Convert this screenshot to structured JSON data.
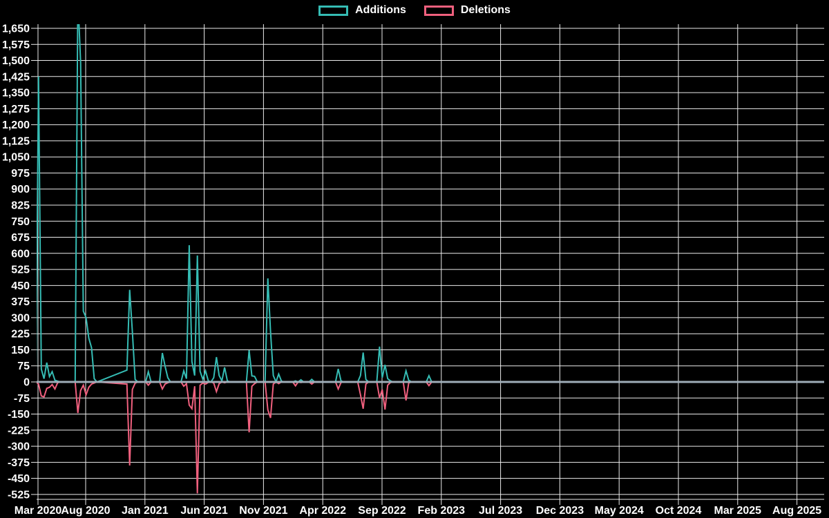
{
  "chart_data": {
    "type": "line",
    "title": "",
    "legend": {
      "position": "top-center",
      "items": [
        {
          "label": "Additions",
          "color": "#35bcb4"
        },
        {
          "label": "Deletions",
          "color": "#f0607e"
        }
      ]
    },
    "colors": {
      "background": "#000000",
      "grid": "#ededed",
      "axis_text": "#ffffff",
      "zero_line": "#9fadb8",
      "additions": "#35bcb4",
      "deletions": "#f0607e"
    },
    "grid": true,
    "y_axis": {
      "min": -525,
      "max": 1650,
      "tick_step": 75,
      "tick_labels": [
        "1,650",
        "1,575",
        "1,500",
        "1,425",
        "1,350",
        "1,275",
        "1,200",
        "1,125",
        "1,050",
        "975",
        "900",
        "825",
        "750",
        "675",
        "600",
        "525",
        "450",
        "375",
        "300",
        "225",
        "150",
        "75",
        "0",
        "-75",
        "-150",
        "-225",
        "-300",
        "-375",
        "-450",
        "-525"
      ]
    },
    "x_axis": {
      "tick_labels": [
        "Mar 2020",
        "Aug 2020",
        "Jan 2021",
        "Jun 2021",
        "Nov 2021",
        "Apr 2022",
        "Sep 2022",
        "Feb 2023",
        "Jul 2023",
        "Dec 2023",
        "May 2024",
        "Oct 2024",
        "Mar 2025",
        "Aug 2025"
      ]
    },
    "points_schema": [
      "week_start_date",
      "additions",
      "deletions"
    ],
    "points": [
      [
        "2020-03-26",
        0,
        0
      ],
      [
        "2020-04-02",
        1425,
        -10
      ],
      [
        "2020-04-09",
        60,
        -65
      ],
      [
        "2020-04-16",
        15,
        -70
      ],
      [
        "2020-04-23",
        90,
        -30
      ],
      [
        "2020-04-30",
        25,
        -25
      ],
      [
        "2020-05-07",
        48,
        -12
      ],
      [
        "2020-05-14",
        8,
        -33
      ],
      [
        "2020-05-21",
        4,
        -4
      ],
      [
        "2020-05-28",
        0,
        0
      ],
      [
        "2020-07-05",
        0,
        0
      ],
      [
        "2020-07-12",
        1800,
        -145
      ],
      [
        "2020-07-19",
        1490,
        -40
      ],
      [
        "2020-07-26",
        330,
        -15
      ],
      [
        "2020-08-02",
        300,
        -60
      ],
      [
        "2020-08-09",
        205,
        -25
      ],
      [
        "2020-08-16",
        160,
        -10
      ],
      [
        "2020-08-23",
        15,
        -5
      ],
      [
        "2020-08-30",
        0,
        0
      ],
      [
        "2020-11-15",
        55,
        -10
      ],
      [
        "2020-11-22",
        430,
        -390
      ],
      [
        "2020-11-29",
        235,
        -35
      ],
      [
        "2020-12-06",
        12,
        -6
      ],
      [
        "2020-12-13",
        0,
        0
      ],
      [
        "2021-01-02",
        0,
        0
      ],
      [
        "2021-01-09",
        48,
        -15
      ],
      [
        "2021-01-16",
        0,
        0
      ],
      [
        "2021-02-07",
        0,
        0
      ],
      [
        "2021-02-14",
        135,
        -33
      ],
      [
        "2021-02-21",
        74,
        -10
      ],
      [
        "2021-02-28",
        20,
        -4
      ],
      [
        "2021-03-07",
        0,
        0
      ],
      [
        "2021-04-03",
        0,
        0
      ],
      [
        "2021-04-10",
        52,
        -20
      ],
      [
        "2021-04-17",
        15,
        -8
      ],
      [
        "2021-04-24",
        638,
        -108
      ],
      [
        "2021-05-01",
        95,
        -125
      ],
      [
        "2021-05-08",
        30,
        -20
      ],
      [
        "2021-05-15",
        590,
        -520
      ],
      [
        "2021-05-22",
        50,
        -15
      ],
      [
        "2021-05-29",
        12,
        -5
      ],
      [
        "2021-06-05",
        52,
        -10
      ],
      [
        "2021-06-12",
        5,
        -2
      ],
      [
        "2021-06-19",
        0,
        0
      ],
      [
        "2021-06-26",
        20,
        -5
      ],
      [
        "2021-07-03",
        116,
        -45
      ],
      [
        "2021-07-10",
        30,
        -8
      ],
      [
        "2021-07-17",
        5,
        0
      ],
      [
        "2021-07-24",
        68,
        -4
      ],
      [
        "2021-07-31",
        5,
        0
      ],
      [
        "2021-08-07",
        0,
        0
      ],
      [
        "2021-09-18",
        0,
        0
      ],
      [
        "2021-09-25",
        148,
        -235
      ],
      [
        "2021-10-02",
        28,
        -20
      ],
      [
        "2021-10-09",
        26,
        -8
      ],
      [
        "2021-10-16",
        0,
        0
      ],
      [
        "2021-11-05",
        0,
        0
      ],
      [
        "2021-11-12",
        483,
        -130
      ],
      [
        "2021-11-19",
        235,
        -168
      ],
      [
        "2021-11-26",
        30,
        -10
      ],
      [
        "2021-12-03",
        0,
        0
      ],
      [
        "2021-12-10",
        37,
        -8
      ],
      [
        "2021-12-17",
        4,
        0
      ],
      [
        "2021-12-24",
        0,
        0
      ],
      [
        "2022-01-15",
        0,
        0
      ],
      [
        "2022-01-22",
        5,
        -18
      ],
      [
        "2022-01-29",
        0,
        0
      ],
      [
        "2022-02-05",
        10,
        -3
      ],
      [
        "2022-02-12",
        0,
        0
      ],
      [
        "2022-02-26",
        0,
        0
      ],
      [
        "2022-03-05",
        12,
        -10
      ],
      [
        "2022-03-12",
        0,
        0
      ],
      [
        "2022-05-05",
        0,
        0
      ],
      [
        "2022-05-12",
        61,
        -33
      ],
      [
        "2022-05-19",
        5,
        -3
      ],
      [
        "2022-05-26",
        0,
        0
      ],
      [
        "2022-07-01",
        0,
        0
      ],
      [
        "2022-07-08",
        30,
        -60
      ],
      [
        "2022-07-15",
        137,
        -125
      ],
      [
        "2022-07-22",
        12,
        -10
      ],
      [
        "2022-07-29",
        0,
        0
      ],
      [
        "2022-08-19",
        0,
        0
      ],
      [
        "2022-08-26",
        165,
        -74
      ],
      [
        "2022-09-02",
        20,
        -35
      ],
      [
        "2022-09-09",
        80,
        -129
      ],
      [
        "2022-09-16",
        15,
        -15
      ],
      [
        "2022-09-23",
        5,
        -3
      ],
      [
        "2022-09-30",
        0,
        0
      ],
      [
        "2022-10-26",
        0,
        0
      ],
      [
        "2022-11-02",
        52,
        -86
      ],
      [
        "2022-11-09",
        8,
        -5
      ],
      [
        "2022-11-16",
        0,
        0
      ],
      [
        "2022-12-24",
        0,
        0
      ],
      [
        "2022-12-31",
        29,
        -17
      ],
      [
        "2023-01-07",
        0,
        0
      ]
    ]
  }
}
